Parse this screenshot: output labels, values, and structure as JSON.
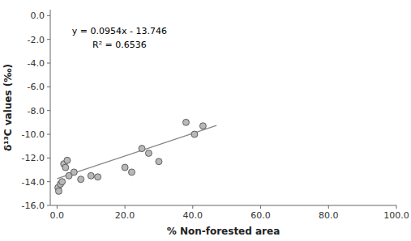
{
  "chart_data": {
    "type": "scatter",
    "xlabel": "% Non-forested area",
    "ylabel": "δ¹³C values (‰)",
    "xlim": [
      -2,
      100
    ],
    "ylim": [
      -16.0,
      0.5
    ],
    "xticks": [
      {
        "value": 0.0,
        "label": "0.0"
      },
      {
        "value": 20.0,
        "label": "20.0"
      },
      {
        "value": 40.0,
        "label": "40.0"
      },
      {
        "value": 60.0,
        "label": "60.0"
      },
      {
        "value": 80.0,
        "label": "80.0"
      },
      {
        "value": 100.0,
        "label": "100.0"
      }
    ],
    "yticks": [
      {
        "value": 0.0,
        "label": "0.0"
      },
      {
        "value": -2.0,
        "label": "-2.0"
      },
      {
        "value": -4.0,
        "label": "-4.0"
      },
      {
        "value": -6.0,
        "label": "-6.0"
      },
      {
        "value": -8.0,
        "label": "-8.0"
      },
      {
        "value": -10.0,
        "label": "-10.0"
      },
      {
        "value": -12.0,
        "label": "-12.0"
      },
      {
        "value": -14.0,
        "label": "-14.0"
      },
      {
        "value": -16.0,
        "label": "-16.0"
      }
    ],
    "series": [
      {
        "type": "scatter",
        "color": "#b8b8b8",
        "x": [
          0.3,
          0.5,
          1.0,
          1.5,
          2.0,
          2.5,
          3.0,
          3.5,
          5.0,
          7.0,
          10.0,
          12.0,
          20.0,
          22.0,
          25.0,
          27.0,
          30.0,
          38.0,
          40.5,
          43.0
        ],
        "values": [
          -14.5,
          -14.8,
          -14.2,
          -14.0,
          -12.5,
          -12.8,
          -12.2,
          -13.5,
          -13.2,
          -13.8,
          -13.5,
          -13.6,
          -12.8,
          -13.2,
          -11.2,
          -11.6,
          -12.3,
          -9.0,
          -10.0,
          -9.3
        ]
      },
      {
        "type": "line",
        "color": "#888888",
        "x": [
          0,
          47
        ],
        "values": [
          -13.746,
          -9.2622
        ]
      }
    ],
    "annotations": [
      "y = 0.0954x - 13.746",
      "R² = 0.6536"
    ]
  }
}
